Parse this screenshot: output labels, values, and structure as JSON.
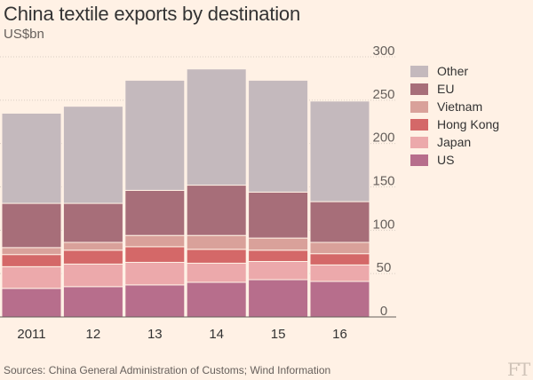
{
  "header": {
    "title": "China textile exports by destination",
    "subtitle": "US$bn"
  },
  "footer": {
    "source": "Sources: China General Administration of Customs; Wind Information",
    "logo": "FT"
  },
  "chart_data": {
    "type": "bar",
    "stacked": true,
    "title": "China textile exports by destination",
    "ylabel": "US$bn",
    "xlabel": "",
    "ylim": [
      0,
      300
    ],
    "yticks": [
      0,
      50,
      100,
      150,
      200,
      250,
      300
    ],
    "categories": [
      "2011",
      "12",
      "13",
      "14",
      "15",
      "16"
    ],
    "series": [
      {
        "name": "US",
        "color": "#b76e8c",
        "values": [
          33,
          35,
          37,
          40,
          43,
          41
        ]
      },
      {
        "name": "Japan",
        "color": "#eca9ab",
        "values": [
          25,
          26,
          26,
          22,
          21,
          19
        ]
      },
      {
        "name": "Hong Kong",
        "color": "#d46868",
        "values": [
          14,
          16,
          18,
          16,
          13,
          13
        ]
      },
      {
        "name": "Vietnam",
        "color": "#d9a19a",
        "values": [
          8,
          9,
          13,
          16,
          14,
          13
        ]
      },
      {
        "name": "EU",
        "color": "#a76e79",
        "values": [
          51,
          45,
          52,
          58,
          53,
          47
        ]
      },
      {
        "name": "Other",
        "color": "#c4b9bd",
        "values": [
          104,
          112,
          127,
          134,
          129,
          116
        ]
      }
    ],
    "legend": {
      "position": "right",
      "order": [
        "Other",
        "EU",
        "Vietnam",
        "Hong Kong",
        "Japan",
        "US"
      ]
    },
    "grid": true
  }
}
